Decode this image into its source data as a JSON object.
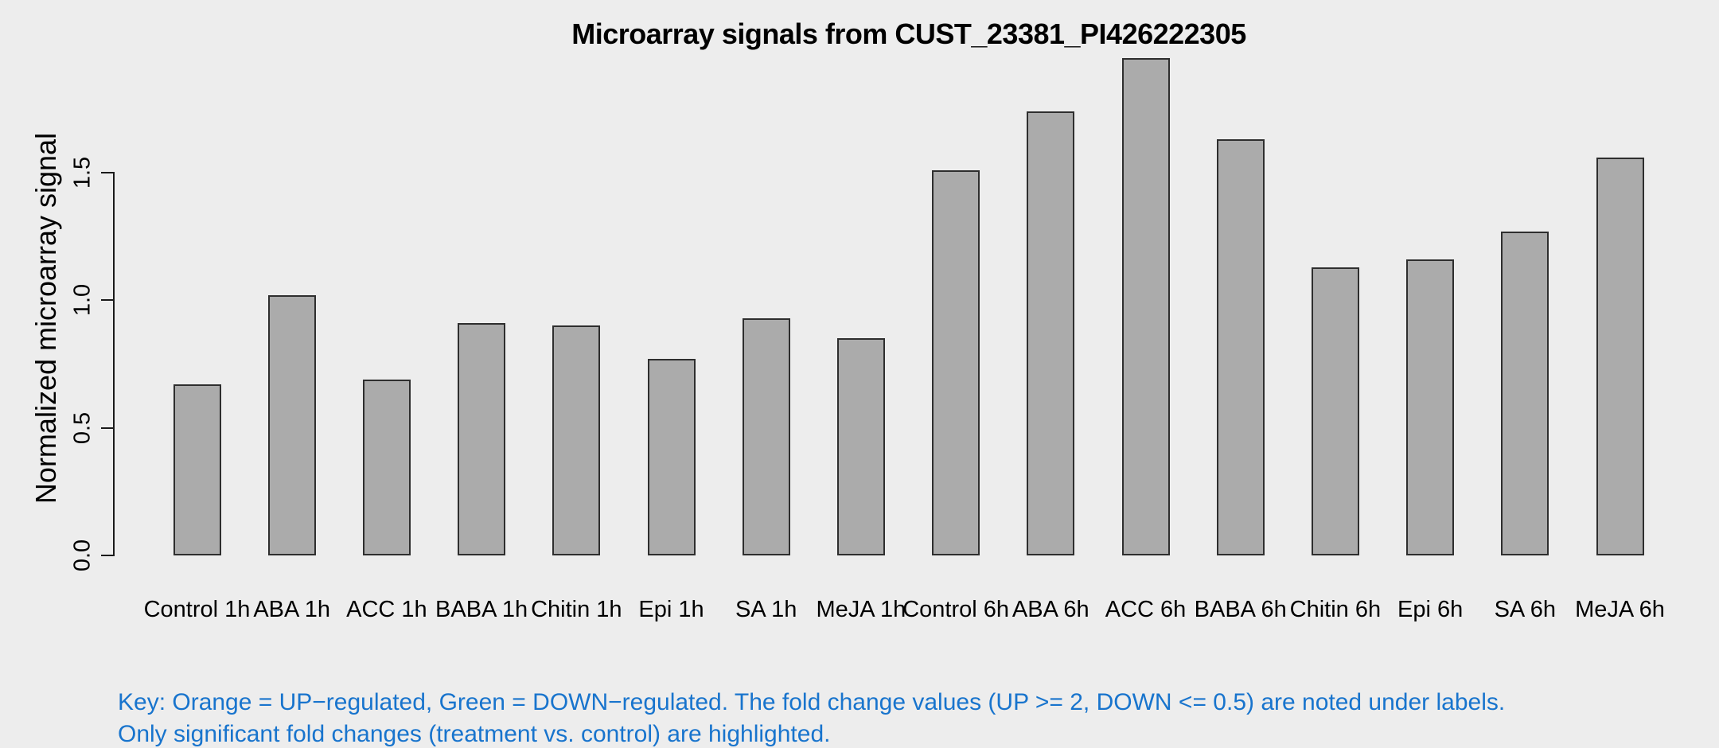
{
  "page": {
    "background": "#EDEDED"
  },
  "chart_data": {
    "type": "bar",
    "title": "Microarray signals from CUST_23381_PI426222305",
    "xlabel": "",
    "ylabel": "Normalized microarray signal",
    "categories": [
      "Control 1h",
      "ABA 1h",
      "ACC 1h",
      "BABA 1h",
      "Chitin 1h",
      "Epi 1h",
      "SA 1h",
      "MeJA 1h",
      "Control 6h",
      "ABA 6h",
      "ACC 6h",
      "BABA 6h",
      "Chitin 6h",
      "Epi 6h",
      "SA 6h",
      "MeJA 6h"
    ],
    "values": [
      0.67,
      1.02,
      0.69,
      0.91,
      0.9,
      0.77,
      0.93,
      0.85,
      1.51,
      1.74,
      1.95,
      1.63,
      1.13,
      1.16,
      1.27,
      1.56
    ],
    "yticks": [
      0.0,
      0.5,
      1.0,
      1.5
    ],
    "ytick_labels": [
      "0.0",
      "0.5",
      "1.0",
      "1.5"
    ],
    "ylim": [
      0,
      2.0
    ],
    "grid": false,
    "legend_position": "none",
    "bar_fill_color": "#ABABAB",
    "bar_border_color": "#2E2E2E",
    "plot_background": "#EDEDED"
  },
  "key": {
    "line1": "Key: Orange = UP−regulated, Green = DOWN−regulated. The fold change values (UP >= 2, DOWN <= 0.5) are noted under labels.",
    "line2": "Only significant fold changes (treatment vs. control) are highlighted.",
    "color": "#1874CD"
  }
}
